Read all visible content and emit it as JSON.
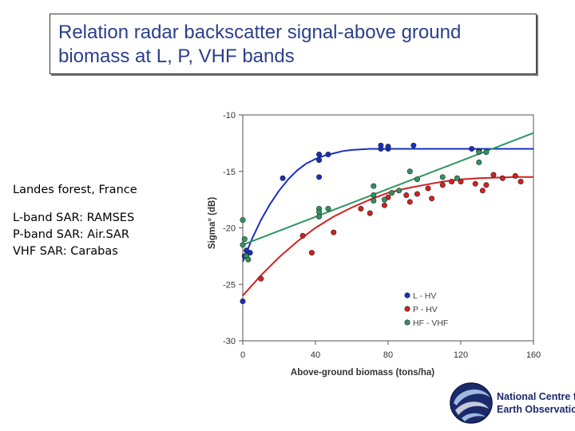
{
  "slide": {
    "title_line1": "Relation radar backscatter signal-above ground",
    "title_line2": "biomass at L, P, VHF bands",
    "site": "Landes forest, France",
    "sensors": [
      "L-band SAR: RAMSES",
      "P-band SAR: Air.SAR",
      "VHF SAR: Carabas"
    ]
  },
  "logo": {
    "line1": "National Centre for",
    "line2": "Earth Observation",
    "colors": {
      "dark": "#1b2a6b",
      "light": "#9fb8e0"
    }
  },
  "chart_data": {
    "type": "scatter",
    "xlabel": "Above-ground biomass (tons/ha)",
    "ylabel": "Sigma° (dB)",
    "xlim": [
      0,
      160
    ],
    "ylim": [
      -30,
      -10
    ],
    "xticks": [
      0,
      40,
      80,
      120,
      160
    ],
    "yticks": [
      -10,
      -15,
      -20,
      -25,
      -30
    ],
    "grid": false,
    "legend_position": "bottom-right",
    "series": [
      {
        "name": "L - HV",
        "color": "#1a2fc0",
        "points": [
          [
            0,
            -26.5
          ],
          [
            1,
            -22.5
          ],
          [
            2,
            -22.0
          ],
          [
            4,
            -22.2
          ],
          [
            22,
            -15.6
          ],
          [
            42,
            -13.5
          ],
          [
            42,
            -14.0
          ],
          [
            42,
            -15.5
          ],
          [
            47,
            -13.5
          ],
          [
            76,
            -13.0
          ],
          [
            76,
            -12.7
          ],
          [
            80,
            -13.0
          ],
          [
            80,
            -12.8
          ],
          [
            94,
            -12.7
          ],
          [
            126,
            -13.0
          ],
          [
            130,
            -13.2
          ]
        ],
        "fit": [
          [
            0,
            -23.0
          ],
          [
            5,
            -21.0
          ],
          [
            10,
            -19.3
          ],
          [
            15,
            -17.9
          ],
          [
            20,
            -16.7
          ],
          [
            25,
            -15.7
          ],
          [
            30,
            -14.9
          ],
          [
            35,
            -14.3
          ],
          [
            40,
            -13.9
          ],
          [
            45,
            -13.6
          ],
          [
            50,
            -13.4
          ],
          [
            55,
            -13.2
          ],
          [
            60,
            -13.1
          ],
          [
            70,
            -13.0
          ],
          [
            80,
            -13.0
          ],
          [
            160,
            -13.0
          ]
        ]
      },
      {
        "name": "P - HV",
        "color": "#d42020",
        "points": [
          [
            10,
            -24.5
          ],
          [
            33,
            -20.7
          ],
          [
            38,
            -22.2
          ],
          [
            50,
            -20.4
          ],
          [
            65,
            -18.3
          ],
          [
            70,
            -18.7
          ],
          [
            78,
            -18.0
          ],
          [
            80,
            -17.3
          ],
          [
            90,
            -17.1
          ],
          [
            92,
            -17.7
          ],
          [
            96,
            -17.0
          ],
          [
            102,
            -16.5
          ],
          [
            104,
            -17.4
          ],
          [
            110,
            -16.2
          ],
          [
            115,
            -15.9
          ],
          [
            120,
            -15.9
          ],
          [
            128,
            -16.1
          ],
          [
            132,
            -16.7
          ],
          [
            134,
            -16.2
          ],
          [
            138,
            -15.3
          ],
          [
            143,
            -15.6
          ],
          [
            150,
            -15.4
          ],
          [
            153,
            -15.9
          ]
        ],
        "fit": [
          [
            0,
            -26.0
          ],
          [
            10,
            -24.2
          ],
          [
            20,
            -22.6
          ],
          [
            30,
            -21.2
          ],
          [
            40,
            -20.0
          ],
          [
            50,
            -19.0
          ],
          [
            60,
            -18.2
          ],
          [
            70,
            -17.5
          ],
          [
            80,
            -16.9
          ],
          [
            90,
            -16.5
          ],
          [
            100,
            -16.2
          ],
          [
            110,
            -15.9
          ],
          [
            120,
            -15.7
          ],
          [
            130,
            -15.6
          ],
          [
            140,
            -15.55
          ],
          [
            150,
            -15.5
          ],
          [
            160,
            -15.5
          ]
        ]
      },
      {
        "name": "HF - VHF",
        "color": "#2f9560",
        "points": [
          [
            0,
            -19.3
          ],
          [
            0,
            -21.5
          ],
          [
            1,
            -21.0
          ],
          [
            2,
            -22.5
          ],
          [
            3,
            -22.8
          ],
          [
            42,
            -18.3
          ],
          [
            42,
            -18.6
          ],
          [
            42,
            -19.0
          ],
          [
            47,
            -18.3
          ],
          [
            72,
            -16.3
          ],
          [
            72,
            -17.1
          ],
          [
            72,
            -17.6
          ],
          [
            78,
            -17.5
          ],
          [
            82,
            -16.9
          ],
          [
            86,
            -16.7
          ],
          [
            92,
            -15.0
          ],
          [
            96,
            -15.7
          ],
          [
            110,
            -15.5
          ],
          [
            118,
            -15.6
          ],
          [
            130,
            -14.2
          ],
          [
            130,
            -13.3
          ],
          [
            134,
            -13.3
          ]
        ],
        "fit": [
          [
            0,
            -21.5
          ],
          [
            160,
            -11.6
          ]
        ]
      }
    ]
  }
}
